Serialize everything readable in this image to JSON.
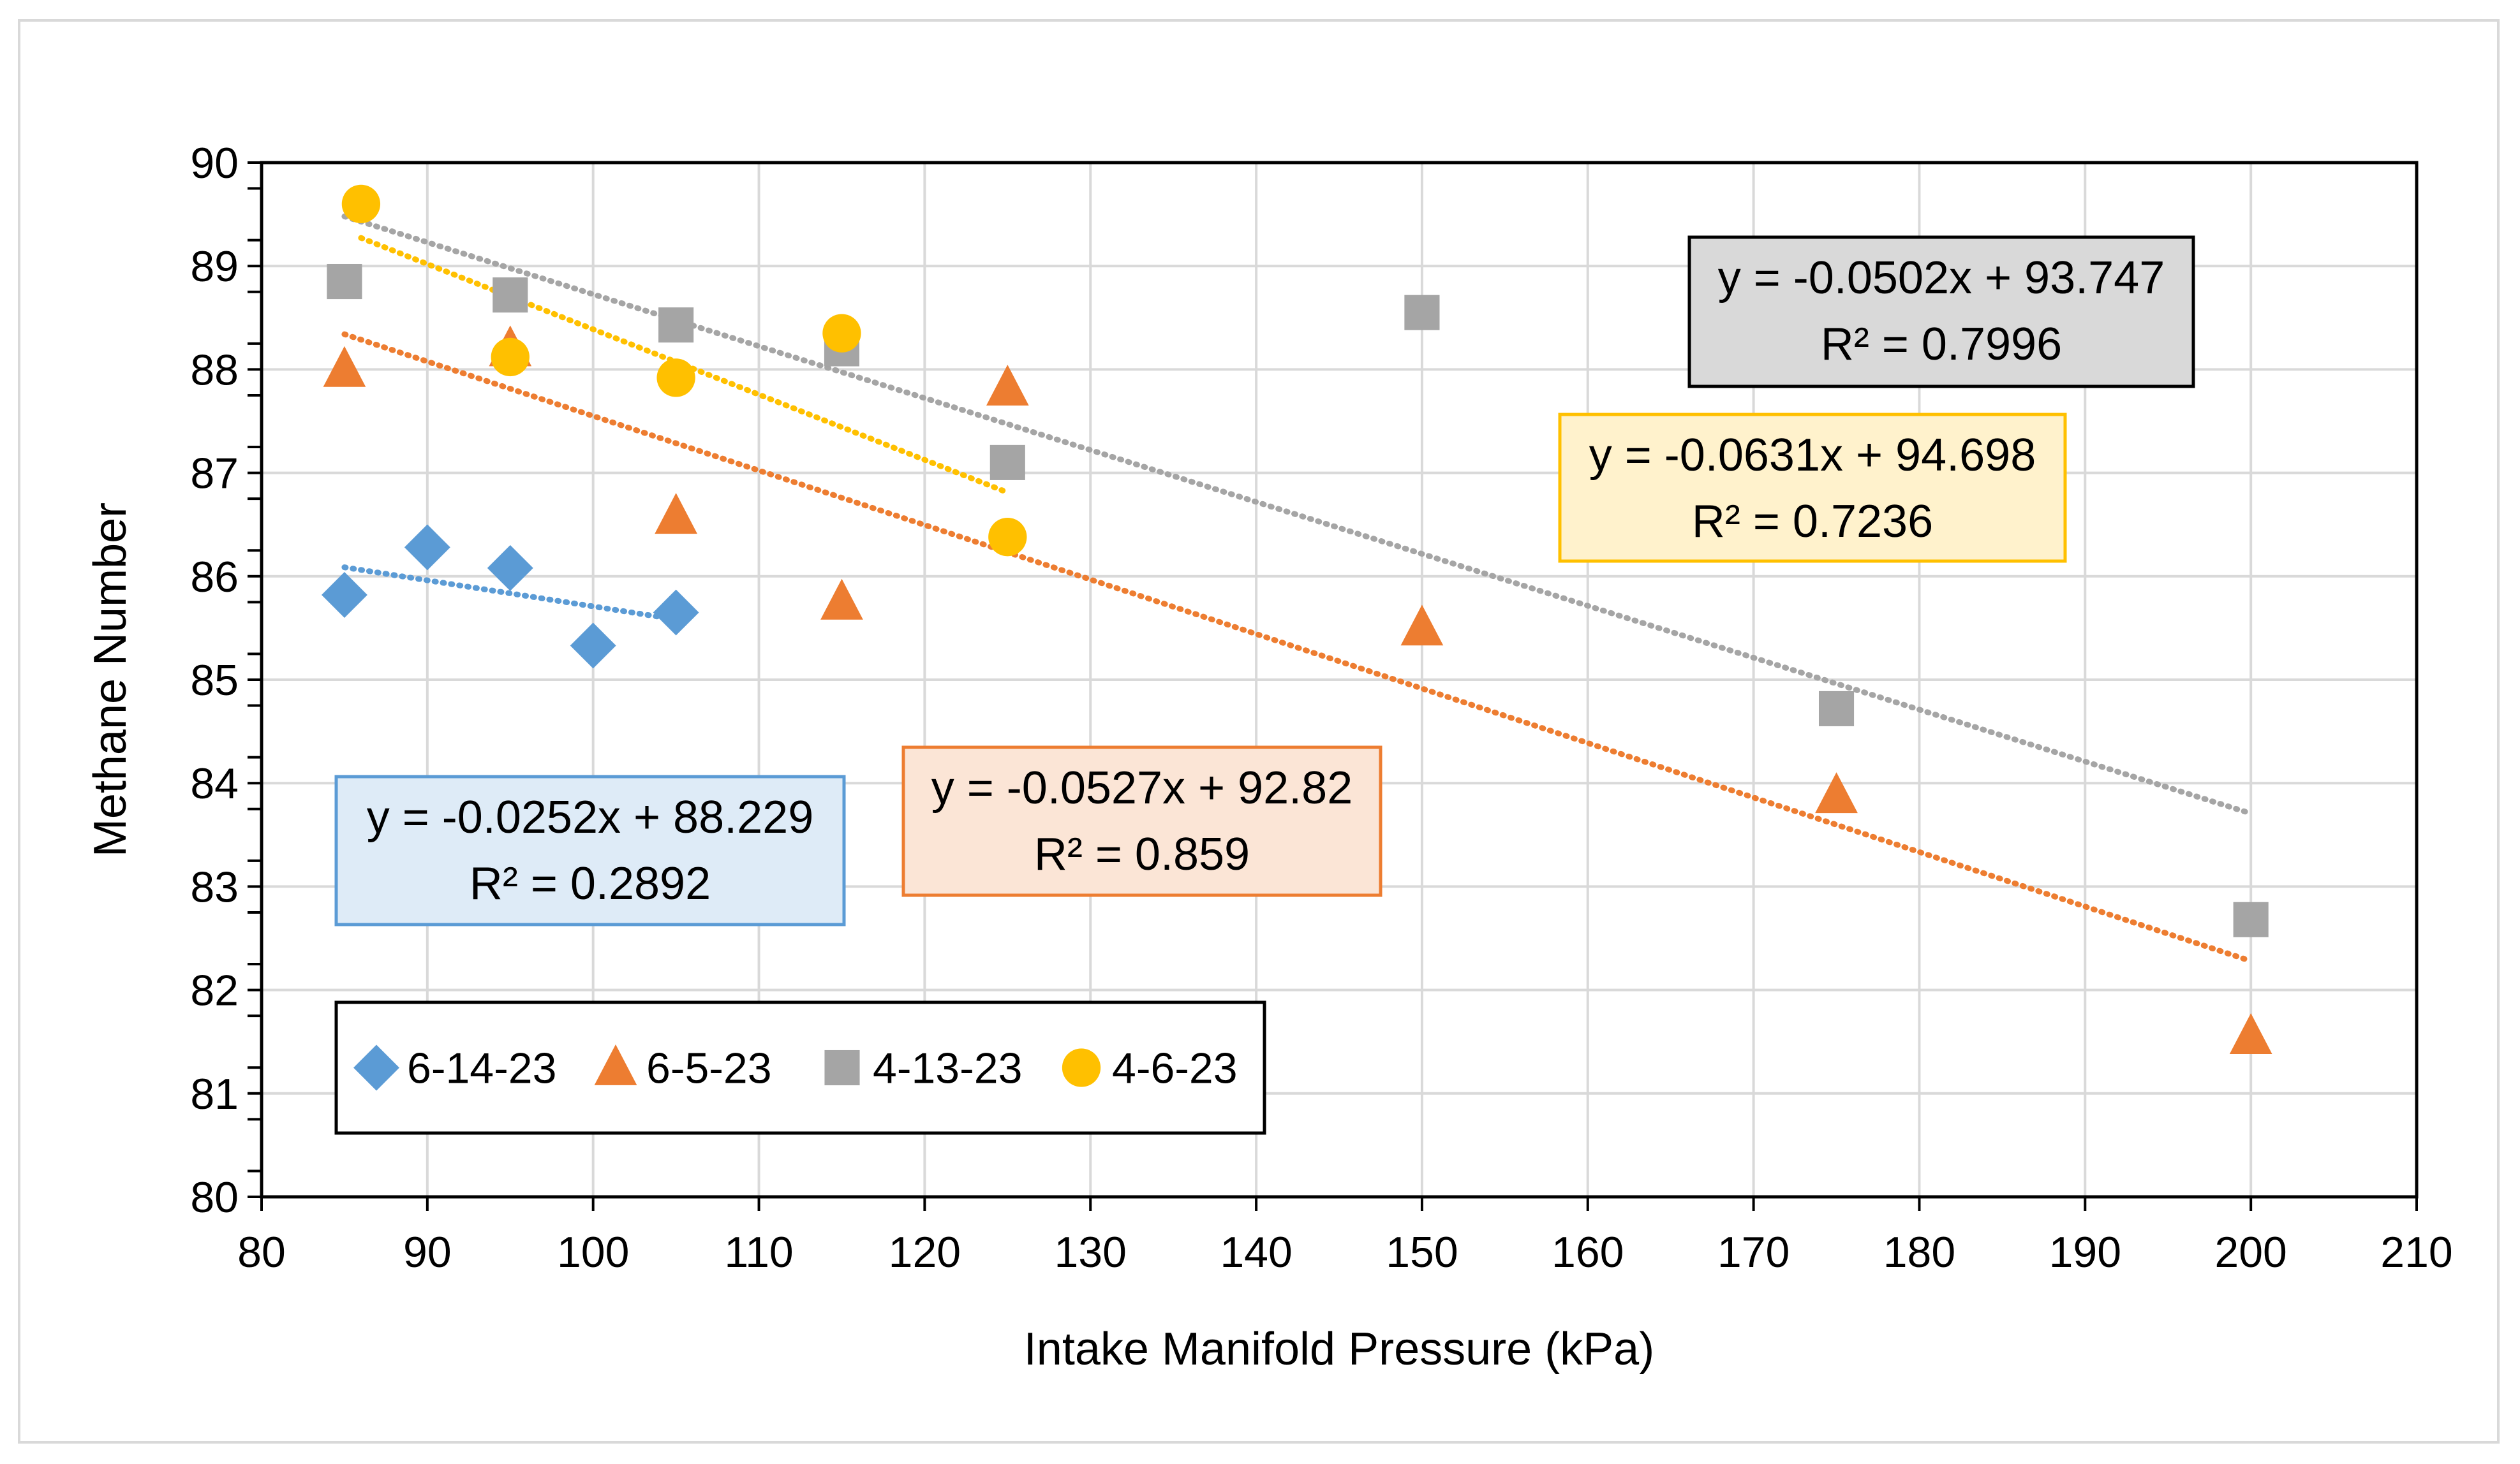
{
  "chart_data": {
    "type": "scatter",
    "title": "",
    "xlabel": "Intake Manifold Pressure (kPa)",
    "ylabel": "Methane Number",
    "xlim": [
      80,
      210
    ],
    "ylim": [
      80,
      90
    ],
    "xticks": [
      80,
      90,
      100,
      110,
      120,
      130,
      140,
      150,
      160,
      170,
      180,
      190,
      200,
      210
    ],
    "yticks": [
      80,
      81,
      82,
      83,
      84,
      85,
      86,
      87,
      88,
      89,
      90
    ],
    "grid": true,
    "legend_position": "bottom-left",
    "series": [
      {
        "name": "6-14-23",
        "marker": "diamond",
        "color": "#5b9bd5",
        "x": [
          85,
          90,
          95,
          100,
          105
        ],
        "y": [
          85.82,
          86.28,
          86.08,
          85.33,
          85.65
        ],
        "trendline": {
          "equation": "y = -0.0252x + 88.229",
          "r2": "R² = 0.2892",
          "x_range": [
            85,
            105
          ],
          "slope": -0.0252,
          "intercept": 88.229
        }
      },
      {
        "name": "6-5-23",
        "marker": "triangle",
        "color": "#ed7d31",
        "x": [
          85,
          95,
          105,
          115,
          125,
          150,
          175,
          200
        ],
        "y": [
          88.0,
          88.2,
          86.58,
          85.75,
          87.82,
          85.5,
          83.88,
          81.55
        ],
        "trendline": {
          "equation": "y = -0.0527x + 92.82",
          "r2": "R² = 0.859",
          "x_range": [
            85,
            200
          ],
          "slope": -0.0527,
          "intercept": 92.82
        }
      },
      {
        "name": "4-13-23",
        "marker": "square",
        "color": "#a5a5a5",
        "x": [
          85,
          95,
          105,
          115,
          125,
          150,
          175,
          200
        ],
        "y": [
          88.85,
          88.72,
          88.43,
          88.2,
          87.1,
          88.55,
          84.72,
          82.68
        ],
        "trendline": {
          "equation": "y = -0.0502x + 93.747",
          "r2": "R² = 0.7996",
          "x_range": [
            85,
            200
          ],
          "slope": -0.0502,
          "intercept": 93.747
        }
      },
      {
        "name": "4-6-23",
        "marker": "circle",
        "color": "#ffc000",
        "x": [
          86,
          95,
          105,
          115,
          125
        ],
        "y": [
          89.6,
          88.12,
          87.92,
          88.35,
          86.38
        ],
        "trendline": {
          "equation": "y = -0.0631x + 94.698",
          "r2": "R² = 0.7236",
          "x_range": [
            86,
            125
          ],
          "slope": -0.0631,
          "intercept": 94.698
        }
      }
    ],
    "equation_boxes": [
      {
        "series": "4-13-23",
        "fill": "#d9d9d9",
        "border": "#000000"
      },
      {
        "series": "4-6-23",
        "fill": "#fff2cc",
        "border": "#ffc000"
      },
      {
        "series": "6-5-23",
        "fill": "#fbe5d6",
        "border": "#ed7d31"
      },
      {
        "series": "6-14-23",
        "fill": "#deebf7",
        "border": "#5b9bd5"
      }
    ]
  }
}
